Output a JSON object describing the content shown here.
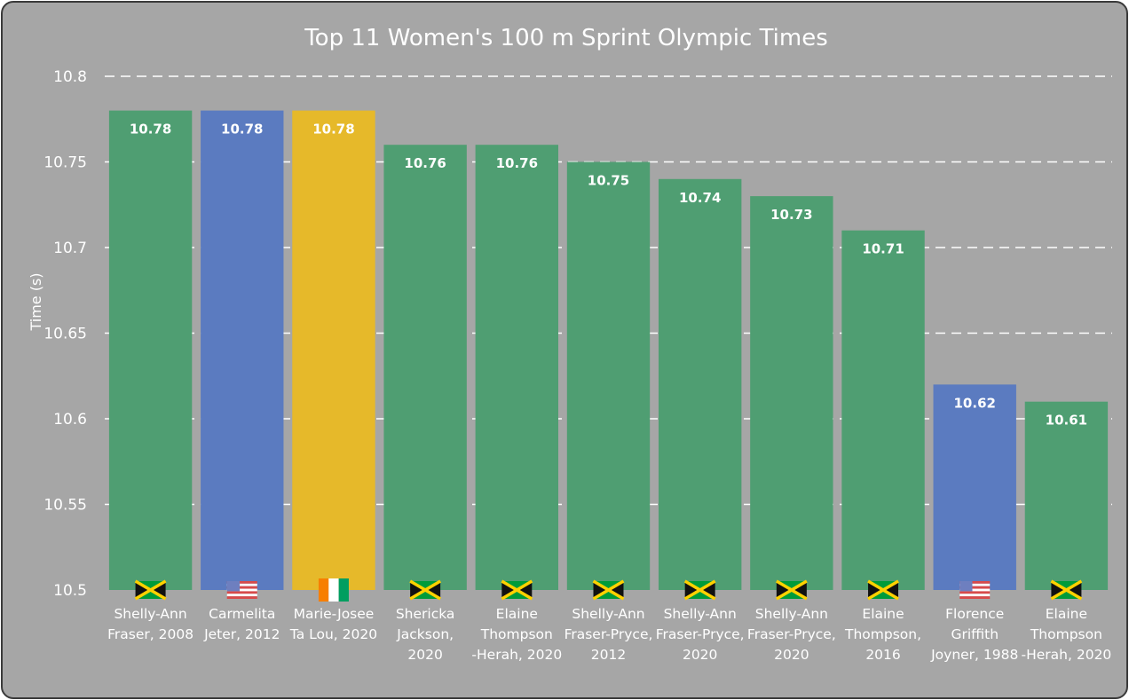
{
  "chart_data": {
    "type": "bar",
    "title": "Top 11 Women's 100 m Sprint Olympic Times",
    "xlabel": "",
    "ylabel": "Time (s)",
    "ylim": [
      10.5,
      10.8
    ],
    "yticks": [
      "10.5",
      "10.55",
      "10.6",
      "10.65",
      "10.7",
      "10.75",
      "10.8"
    ],
    "grid": "horizontal dashed",
    "categories": [
      [
        "Shelly-Ann",
        "Fraser, 2008"
      ],
      [
        "Carmelita",
        "Jeter, 2012"
      ],
      [
        "Marie-Josee",
        "Ta Lou, 2020"
      ],
      [
        "Shericka",
        "Jackson,",
        "2020"
      ],
      [
        "Elaine",
        "Thompson",
        "-Herah, 2020"
      ],
      [
        "Shelly-Ann",
        "Fraser-Pryce,",
        "2012"
      ],
      [
        "Shelly-Ann",
        "Fraser-Pryce,",
        "2020"
      ],
      [
        "Shelly-Ann",
        "Fraser-Pryce,",
        "2020"
      ],
      [
        "Elaine",
        "Thompson,",
        "2016"
      ],
      [
        "Florence",
        "Griffith",
        "Joyner, 1988"
      ],
      [
        "Elaine",
        "Thompson",
        "-Herah, 2020"
      ]
    ],
    "values": [
      10.78,
      10.78,
      10.78,
      10.76,
      10.76,
      10.75,
      10.74,
      10.73,
      10.71,
      10.62,
      10.61
    ],
    "data_labels": [
      "10.78",
      "10.78",
      "10.78",
      "10.76",
      "10.76",
      "10.75",
      "10.74",
      "10.73",
      "10.71",
      "10.62",
      "10.61"
    ],
    "flags": [
      "jamaica",
      "usa",
      "cote-divoire",
      "jamaica",
      "jamaica",
      "jamaica",
      "jamaica",
      "jamaica",
      "jamaica",
      "usa",
      "jamaica"
    ]
  },
  "colors": {
    "background": "#a6a6a6",
    "jamaica": "#4f9e72",
    "usa": "#5b7bc0",
    "cote-divoire": "#e6b92a"
  }
}
